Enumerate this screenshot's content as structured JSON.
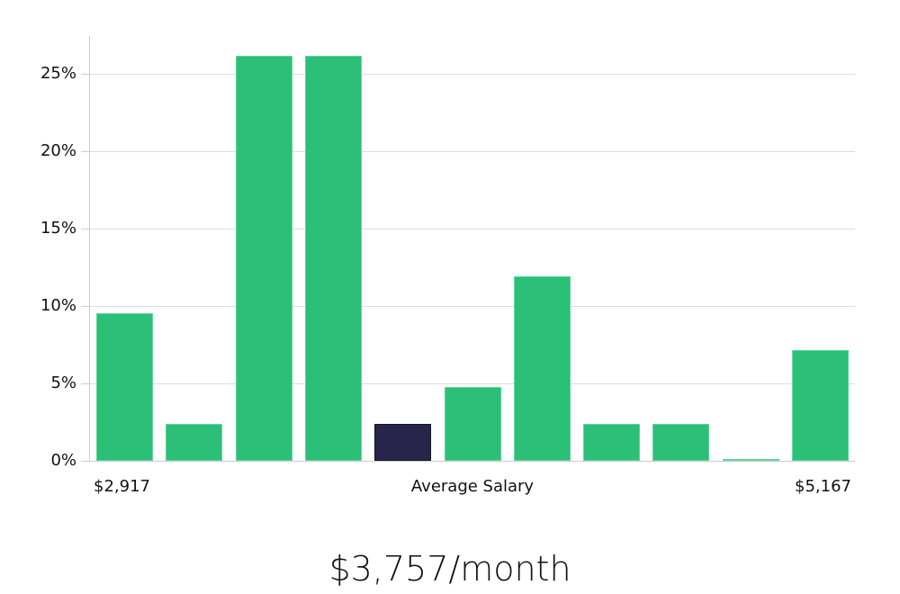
{
  "chart_data": {
    "type": "bar",
    "title": "",
    "xlabel": "Average Salary",
    "ylabel": "",
    "categories": [
      "bin1",
      "bin2",
      "bin3",
      "bin4",
      "bin5",
      "bin6",
      "bin7",
      "bin8",
      "bin9",
      "bin10",
      "bin11"
    ],
    "values": [
      9.52,
      2.38,
      26.19,
      26.19,
      2.38,
      4.76,
      11.9,
      2.38,
      2.38,
      0.1,
      7.14
    ],
    "highlight_index": 4,
    "ylim": [
      0,
      27.5
    ],
    "yticks": [
      "0%",
      "5%",
      "10%",
      "15%",
      "20%",
      "25%"
    ],
    "x_min_label": "$2,917",
    "x_max_label": "$5,167",
    "grid": true,
    "colors": {
      "bar": "#2bbf78",
      "highlight": "#27264a"
    }
  },
  "summary": {
    "salary": "$3,757/month"
  }
}
